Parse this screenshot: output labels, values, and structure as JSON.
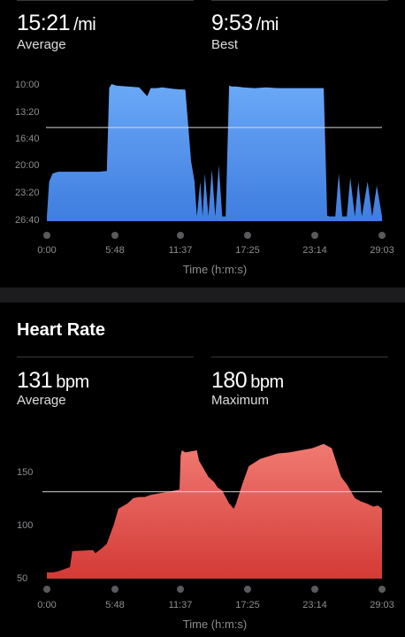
{
  "pace": {
    "average": {
      "value": "15:21",
      "unit": "/mi",
      "label": "Average"
    },
    "best": {
      "value": "9:53",
      "unit": "/mi",
      "label": "Best"
    },
    "chart_data": {
      "type": "area",
      "title": "",
      "xlabel": "Time (h:m:s)",
      "ylabel": "",
      "color": "#5b9cf2",
      "y_inverted": true,
      "y_ticks": [
        "10:00",
        "13:20",
        "16:40",
        "20:00",
        "23:20",
        "26:40"
      ],
      "x_ticks": [
        "0:00",
        "5:48",
        "11:37",
        "17:25",
        "23:14",
        "29:03"
      ],
      "average_line": "15:21",
      "x_minutes": [
        0.0,
        0.2,
        0.5,
        1.0,
        1.5,
        2.5,
        3.5,
        4.5,
        5.2,
        5.4,
        5.6,
        6.0,
        7.0,
        8.0,
        8.7,
        9.0,
        9.5,
        10.0,
        10.5,
        11.0,
        12.0,
        12.5,
        12.8,
        13.0,
        13.3,
        13.5,
        13.7,
        14.0,
        14.3,
        14.6,
        14.9,
        15.2,
        15.5,
        15.8,
        16.0,
        16.3,
        16.4,
        17.0,
        18.0,
        19.0,
        20.0,
        21.0,
        22.0,
        23.0,
        24.0,
        24.3,
        24.5,
        25.0,
        25.3,
        25.6,
        26.0,
        26.3,
        26.7,
        27.0,
        27.3,
        27.8,
        28.2,
        28.6,
        29.05
      ],
      "pace_min_per_mi": [
        26.3,
        22.0,
        21.0,
        20.8,
        20.8,
        20.8,
        20.8,
        20.8,
        20.7,
        10.5,
        10.0,
        10.2,
        10.3,
        10.4,
        11.5,
        10.5,
        10.5,
        10.4,
        10.5,
        10.6,
        10.7,
        19.5,
        22.0,
        26.3,
        22.0,
        26.3,
        21.0,
        26.3,
        20.5,
        26.3,
        20.0,
        26.3,
        26.3,
        10.2,
        10.3,
        10.3,
        10.3,
        10.4,
        10.5,
        10.4,
        10.5,
        10.5,
        10.5,
        10.5,
        10.5,
        26.2,
        26.3,
        26.3,
        21.0,
        26.3,
        26.3,
        21.5,
        26.3,
        22.0,
        26.3,
        22.0,
        26.3,
        22.5,
        26.3
      ]
    }
  },
  "heart_rate": {
    "title": "Heart Rate",
    "average": {
      "value": "131",
      "unit": "bpm",
      "label": "Average"
    },
    "maximum": {
      "value": "180",
      "unit": "bpm",
      "label": "Maximum"
    },
    "chart_data": {
      "type": "area",
      "title": "",
      "xlabel": "Time (h:m:s)",
      "ylabel": "",
      "color": "#e0524d",
      "y_ticks": [
        "150",
        "100",
        "50"
      ],
      "x_ticks": [
        "0:00",
        "5:48",
        "11:37",
        "17:25",
        "23:14",
        "29:03"
      ],
      "average_line": 131,
      "x_minutes": [
        0.0,
        0.5,
        1.0,
        1.5,
        2.0,
        2.2,
        4.0,
        4.2,
        4.8,
        5.2,
        5.8,
        6.2,
        7.0,
        7.5,
        8.0,
        8.5,
        9.0,
        10.0,
        11.0,
        11.5,
        11.6,
        11.7,
        12.0,
        13.0,
        13.2,
        14.0,
        14.5,
        14.8,
        15.2,
        15.8,
        16.2,
        16.4,
        17.0,
        17.5,
        18.5,
        20.0,
        21.0,
        22.0,
        23.0,
        24.0,
        24.7,
        25.2,
        25.5,
        26.0,
        26.7,
        27.2,
        27.7,
        28.3,
        28.7,
        29.05
      ],
      "bpm": [
        55,
        55,
        56,
        58,
        60,
        75,
        76,
        73,
        78,
        82,
        100,
        115,
        120,
        125,
        126,
        126,
        128,
        130,
        132,
        133,
        165,
        170,
        168,
        170,
        160,
        145,
        140,
        135,
        132,
        120,
        115,
        120,
        140,
        155,
        162,
        167,
        168,
        170,
        172,
        176,
        172,
        155,
        145,
        138,
        125,
        122,
        120,
        117,
        118,
        115
      ]
    }
  }
}
